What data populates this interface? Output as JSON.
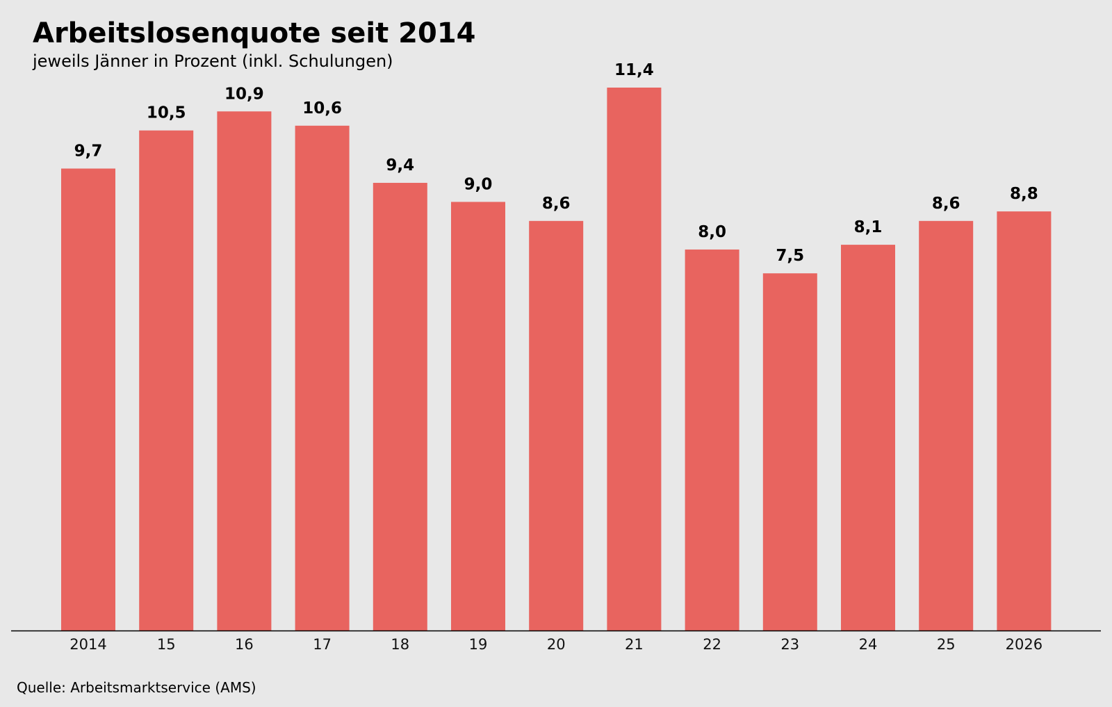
{
  "header": {
    "title": "Arbeitslosenquote seit 2014",
    "subtitle": "jeweils Jänner in Prozent (inkl. Schulungen)"
  },
  "footer": {
    "source": "Quelle: Arbeitsmarktservice (AMS)"
  },
  "colors": {
    "bar": "#e8645f",
    "background": "#e8e8e8",
    "axis": "#000000"
  },
  "chart_data": {
    "type": "bar",
    "title": "Arbeitslosenquote seit 2014",
    "subtitle": "jeweils Jänner in Prozent (inkl. Schulungen)",
    "xlabel": "",
    "ylabel": "",
    "categories": [
      "2014",
      "15",
      "16",
      "17",
      "18",
      "19",
      "20",
      "21",
      "22",
      "23",
      "24",
      "25",
      "2026"
    ],
    "values": [
      9.7,
      10.5,
      10.9,
      10.6,
      9.4,
      9.0,
      8.6,
      11.4,
      8.0,
      7.5,
      8.1,
      8.6,
      8.8
    ],
    "data_labels": [
      "9,7",
      "10,5",
      "10,9",
      "10,6",
      "9,4",
      "9,0",
      "8,6",
      "11,4",
      "8,0",
      "7,5",
      "8,1",
      "8,6",
      "8,8"
    ],
    "ylim": [
      0,
      11.4
    ],
    "grid": false,
    "y_axis_visible": false
  }
}
